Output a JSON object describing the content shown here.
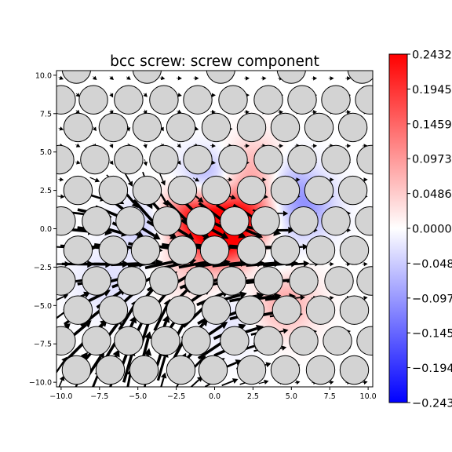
{
  "chart_data": {
    "type": "heatmap",
    "title": "bcc screw: screw component",
    "xlabel": "",
    "ylabel": "",
    "xlim": [
      -10.3,
      10.3
    ],
    "ylim": [
      -10.3,
      10.3
    ],
    "xticks": [
      -10.0,
      -7.5,
      -5.0,
      -2.5,
      0.0,
      2.5,
      5.0,
      7.5,
      10.0
    ],
    "yticks": [
      -10.0,
      -7.5,
      -5.0,
      -2.5,
      0.0,
      2.5,
      5.0,
      7.5,
      10.0
    ],
    "xtick_labels": [
      "−10.0",
      "−7.5",
      "−5.0",
      "−2.5",
      "0.0",
      "2.5",
      "5.0",
      "7.5",
      "10.0"
    ],
    "ytick_labels": [
      "−10.0",
      "−7.5",
      "−5.0",
      "−2.5",
      "0.0",
      "2.5",
      "5.0",
      "7.5",
      "10.0"
    ],
    "grid": false,
    "colormap": "bwr",
    "colors": {
      "low": "#0000ff",
      "mid": "#ffffff",
      "high": "#ff0000",
      "atom_fill": "#d3d3d3",
      "atom_edge": "#000000",
      "arrow": "#000000"
    },
    "colorbar": {
      "min": -0.2432,
      "max": 0.2432,
      "ticks": [
        0.2432,
        0.1945,
        0.1459,
        0.0973,
        0.0486,
        0.0,
        -0.0486,
        -0.0973,
        -0.1459,
        -0.1945,
        -0.2432
      ],
      "tick_labels": [
        "0.2432",
        "0.1945",
        "0.1459",
        "0.0973",
        "0.0486",
        "0.0000",
        "−0.0486",
        "−0.0973",
        "−0.1459",
        "−0.1945",
        "−0.2432"
      ]
    },
    "field_sources": [
      {
        "x": 0.3,
        "y": -0.1,
        "amp": 0.2432,
        "sigma": 1.5
      },
      {
        "x": 2.2,
        "y": 0.9,
        "amp": 0.14,
        "sigma": 1.3
      },
      {
        "x": -1.6,
        "y": 0.7,
        "amp": 0.12,
        "sigma": 1.3
      },
      {
        "x": 2.8,
        "y": 4.0,
        "amp": 0.08,
        "sigma": 1.4
      },
      {
        "x": 4.4,
        "y": -4.8,
        "amp": 0.09,
        "sigma": 1.5
      },
      {
        "x": 1.6,
        "y": -1.6,
        "amp": 0.05,
        "sigma": 1.0
      },
      {
        "x": -1.3,
        "y": -2.7,
        "amp": 0.04,
        "sigma": 1.6
      },
      {
        "x": -2.3,
        "y": 1.2,
        "amp": 0.03,
        "sigma": 1.0
      },
      {
        "x": 5.8,
        "y": 1.5,
        "amp": -0.1,
        "sigma": 1.4
      },
      {
        "x": -0.5,
        "y": 3.4,
        "amp": -0.08,
        "sigma": 1.2
      },
      {
        "x": 4.6,
        "y": 3.6,
        "amp": -0.05,
        "sigma": 1.2
      },
      {
        "x": -4.5,
        "y": 0.2,
        "amp": -0.05,
        "sigma": 1.3
      },
      {
        "x": 3.5,
        "y": -2.0,
        "amp": -0.04,
        "sigma": 1.2
      },
      {
        "x": 1.5,
        "y": -5.5,
        "amp": -0.03,
        "sigma": 1.8
      },
      {
        "x": -7.0,
        "y": -3.5,
        "amp": -0.03,
        "sigma": 1.6
      }
    ],
    "atom_rows": [
      {
        "y": 10.4,
        "x": [
          -9.0,
          -4.4,
          0.4,
          5.0,
          9.6
        ]
      },
      {
        "y": 8.4,
        "x": [
          -10.0,
          -7.9,
          -5.6,
          -3.3,
          -1.1,
          1.2,
          3.5,
          5.7,
          7.9,
          10.1
        ]
      },
      {
        "y": 6.6,
        "x": [
          -8.9,
          -6.6,
          -4.4,
          -2.2,
          0.1,
          2.4,
          4.6,
          6.8,
          9.0
        ]
      },
      {
        "y": 4.5,
        "x": [
          -10.1,
          -7.8,
          -5.6,
          -3.3,
          -1.1,
          1.2,
          3.5,
          5.7,
          7.9,
          10.2
        ]
      },
      {
        "y": 2.5,
        "x": [
          -8.9,
          -6.6,
          -4.4,
          -2.1,
          0.1,
          2.4,
          4.6,
          6.8,
          9.0
        ]
      },
      {
        "y": 0.5,
        "x": [
          -10.0,
          -7.7,
          -5.5,
          -3.1,
          -0.9,
          1.3,
          3.3,
          5.8,
          7.9,
          10.1
        ]
      },
      {
        "y": -1.4,
        "x": [
          -8.9,
          -6.6,
          -4.5,
          -2.1,
          0.0,
          2.4,
          4.6,
          6.9,
          9.1
        ]
      },
      {
        "y": -3.4,
        "x": [
          -10.0,
          -7.7,
          -5.4,
          -3.3,
          -1.0,
          1.1,
          3.5,
          5.8,
          8.1,
          10.2
        ]
      },
      {
        "y": -5.3,
        "x": [
          -8.9,
          -6.6,
          -4.4,
          -2.2,
          0.1,
          2.3,
          4.7,
          6.9,
          9.1
        ]
      },
      {
        "y": -7.3,
        "x": [
          -10.0,
          -7.7,
          -5.6,
          -3.2,
          -1.2,
          1.3,
          3.5,
          5.8,
          8.0,
          10.2
        ]
      },
      {
        "y": -9.2,
        "x": [
          -9.0,
          -6.8,
          -4.6,
          -2.2,
          -0.1,
          2.4,
          4.6,
          6.9,
          9.1
        ]
      }
    ],
    "arrow_field": [
      {
        "x": -7.0,
        "y": -8.0,
        "dx": 0.0,
        "dy": 2.2,
        "sigma": 2.6
      },
      {
        "x": -3.0,
        "y": -5.8,
        "dx": 0.0,
        "dy": 2.2,
        "sigma": 2.6
      },
      {
        "x": -4.8,
        "y": 1.0,
        "dx": -0.4,
        "dy": -2.0,
        "sigma": 1.9
      },
      {
        "x": -2.0,
        "y": -1.6,
        "dx": 2.3,
        "dy": 0.1,
        "sigma": 2.6
      },
      {
        "x": -7.0,
        "y": -2.3,
        "dx": 2.2,
        "dy": -0.3,
        "sigma": 2.3
      },
      {
        "x": 3.0,
        "y": -1.6,
        "dx": 2.2,
        "dy": 0.1,
        "sigma": 2.0
      },
      {
        "x": 2.0,
        "y": -3.2,
        "dx": 2.2,
        "dy": 0.2,
        "sigma": 2.0
      },
      {
        "x": -7.0,
        "y": 0.3,
        "dx": 2.2,
        "dy": 0.1,
        "sigma": 1.8
      },
      {
        "x": -1.0,
        "y": 0.2,
        "dx": 0.5,
        "dy": -2.0,
        "sigma": 1.2
      },
      {
        "x": 1.9,
        "y": 0.2,
        "dx": 0.3,
        "dy": -1.6,
        "sigma": 1.0
      },
      {
        "x": 0.6,
        "y": -7.2,
        "dx": 1.9,
        "dy": 0.4,
        "sigma": 2.6
      },
      {
        "x": -8.0,
        "y": -7.3,
        "dx": 2.1,
        "dy": 0.1,
        "sigma": 1.8
      }
    ]
  }
}
